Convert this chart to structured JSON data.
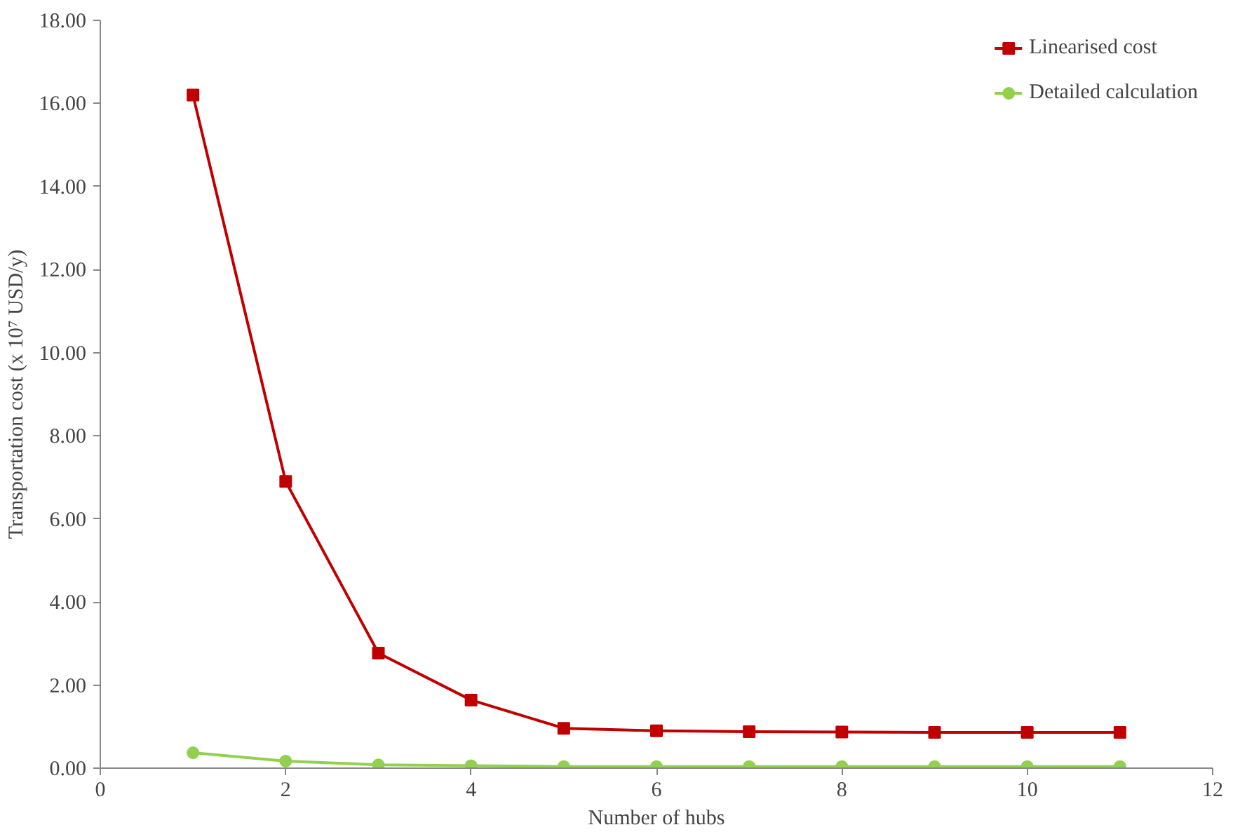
{
  "chart_data": {
    "type": "line",
    "xlabel": "Number of hubs",
    "ylabel": "Transportation cost (x 10⁷ USD/y)",
    "x": [
      1,
      2,
      3,
      4,
      5,
      6,
      7,
      8,
      9,
      10,
      11
    ],
    "series": [
      {
        "name": "Linearised cost",
        "color": "#c00000",
        "marker": "square",
        "values": [
          16.2,
          6.9,
          2.77,
          1.64,
          0.96,
          0.9,
          0.88,
          0.87,
          0.86,
          0.86,
          0.86
        ]
      },
      {
        "name": "Detailed calculation",
        "color": "#92d050",
        "marker": "circle",
        "values": [
          0.37,
          0.17,
          0.08,
          0.06,
          0.04,
          0.04,
          0.04,
          0.04,
          0.04,
          0.04,
          0.04
        ]
      }
    ],
    "xlim": [
      0,
      12
    ],
    "xticks": [
      0,
      2,
      4,
      6,
      8,
      10,
      12
    ],
    "ylim": [
      0,
      18
    ],
    "yticks": [
      {
        "value": 0,
        "label": "0.00"
      },
      {
        "value": 2,
        "label": "2.00"
      },
      {
        "value": 4,
        "label": "4.00"
      },
      {
        "value": 6,
        "label": "6.00"
      },
      {
        "value": 8,
        "label": "8.00"
      },
      {
        "value": 10,
        "label": "10.00"
      },
      {
        "value": 12,
        "label": "12.00"
      },
      {
        "value": 14,
        "label": "14.00"
      },
      {
        "value": 16,
        "label": "16.00"
      },
      {
        "value": 18,
        "label": "18.00"
      }
    ],
    "grid": false,
    "legend": "top right",
    "line_style": "solid"
  }
}
